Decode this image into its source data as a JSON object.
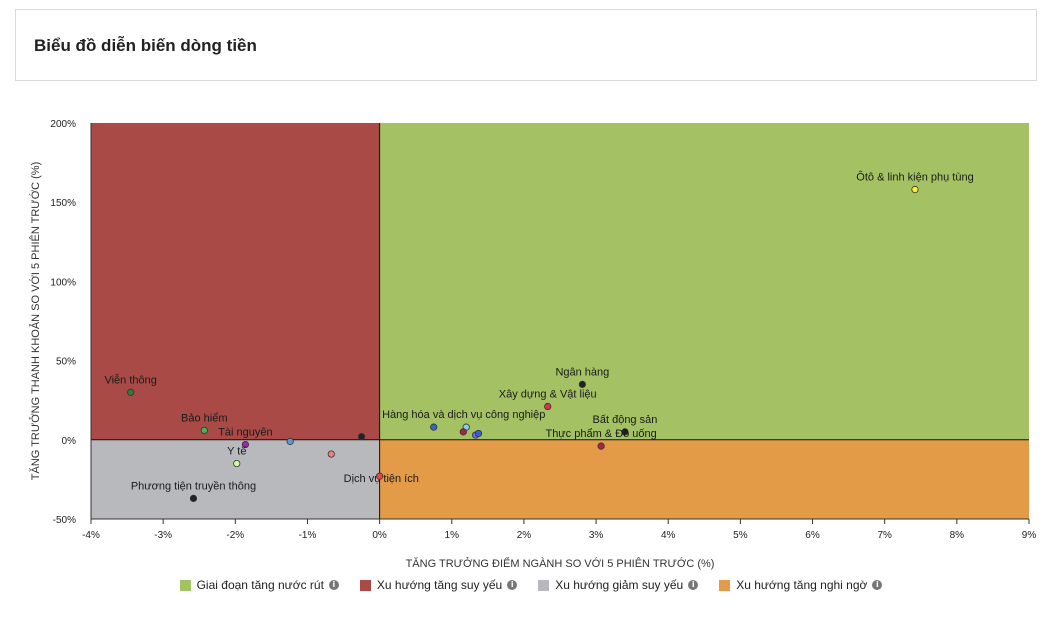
{
  "header": {
    "title": "Biểu đồ diễn biến dòng tiền"
  },
  "colors": {
    "quadrant_green": "#a4c263",
    "quadrant_red": "#a94a46",
    "quadrant_gray": "#b8b9bd",
    "quadrant_orange": "#e39b48"
  },
  "legend": {
    "items": [
      {
        "label": "Giai đoạn tăng nước rút",
        "color": "#a4c263",
        "icon": "info-icon"
      },
      {
        "label": "Xu hướng tăng suy yếu",
        "color": "#a94a46",
        "icon": "info-icon"
      },
      {
        "label": "Xu hướng giảm suy yếu",
        "color": "#b8b9bd",
        "icon": "info-icon"
      },
      {
        "label": "Xu hướng tăng nghi ngờ",
        "color": "#e39b48",
        "icon": "info-icon"
      }
    ]
  },
  "chart_data": {
    "type": "scatter",
    "title": "",
    "xlabel": "TĂNG TRƯỞNG ĐIỂM NGÀNH SO VỚI 5 PHIÊN TRƯỚC (%)",
    "ylabel": "TĂNG TRƯỞNG THANH KHOẢN SO VỚI 5 PHIÊN TRƯỚC (%)",
    "xlim": [
      -4,
      9
    ],
    "ylim": [
      -50,
      200
    ],
    "x_ticks": [
      -4,
      -3,
      -2,
      -1,
      0,
      1,
      2,
      3,
      4,
      5,
      6,
      7,
      8,
      9
    ],
    "x_tick_labels": [
      "-4%",
      "-3%",
      "-2%",
      "-1%",
      "0%",
      "1%",
      "2%",
      "3%",
      "4%",
      "5%",
      "6%",
      "7%",
      "8%",
      "9%"
    ],
    "y_ticks": [
      -50,
      0,
      50,
      100,
      150,
      200
    ],
    "y_tick_labels": [
      "-50%",
      "0%",
      "50%",
      "100%",
      "150%",
      "200%"
    ],
    "grid": false,
    "legend_position": "bottom",
    "points": [
      {
        "name": "Ôtô & linh kiện phụ tùng",
        "x": 7.42,
        "y": 158,
        "color": "#ffee33",
        "label": true
      },
      {
        "name": "Ngân hàng",
        "x": 2.81,
        "y": 35,
        "color": "#222222",
        "label": true
      },
      {
        "name": "Xây dựng & Vật liệu",
        "x": 2.33,
        "y": 21,
        "color": "#d8334a",
        "label": true
      },
      {
        "name": "Bất động sản",
        "x": 3.4,
        "y": 5,
        "color": "#222222",
        "label": true
      },
      {
        "name": "Hàng hóa và dịch vụ công nghiệp",
        "x": 0.75,
        "y": 8,
        "color": "#3366cc",
        "label": true
      },
      {
        "name": "",
        "x": 1.2,
        "y": 8,
        "color": "#87ceeb",
        "label": false
      },
      {
        "name": "",
        "x": 1.16,
        "y": 5,
        "color": "#aa2244",
        "label": false
      },
      {
        "name": "",
        "x": 1.33,
        "y": 3,
        "color": "#7b68ee",
        "label": false
      },
      {
        "name": "",
        "x": 1.37,
        "y": 4,
        "color": "#3366cc",
        "label": false
      },
      {
        "name": "Thực phẩm & Đồ uống",
        "x": 3.07,
        "y": -4,
        "color": "#aa2244",
        "label": true
      },
      {
        "name": "Viễn thông",
        "x": -3.45,
        "y": 30,
        "color": "#2e7d32",
        "label": true
      },
      {
        "name": "Bảo hiểm",
        "x": -2.43,
        "y": 6,
        "color": "#4caf50",
        "label": true
      },
      {
        "name": "Tài nguyên",
        "x": -1.86,
        "y": -3,
        "color": "#9c27b0",
        "label": true
      },
      {
        "name": "",
        "x": -1.24,
        "y": -1,
        "color": "#5b9bd5",
        "label": false
      },
      {
        "name": "",
        "x": -0.25,
        "y": 2,
        "color": "#222222",
        "label": false
      },
      {
        "name": "Y tế",
        "x": -1.98,
        "y": -15,
        "color": "#ccff99",
        "label": true
      },
      {
        "name": "Dịch vụ tiện ích",
        "x": -0.67,
        "y": -9,
        "color": "#f08080",
        "label": true
      },
      {
        "name": "",
        "x": 0.0,
        "y": -23,
        "color": "#ee4444",
        "label": false
      },
      {
        "name": "Phương tiện truyền thông",
        "x": -2.58,
        "y": -37,
        "color": "#222222",
        "label": true
      }
    ]
  }
}
